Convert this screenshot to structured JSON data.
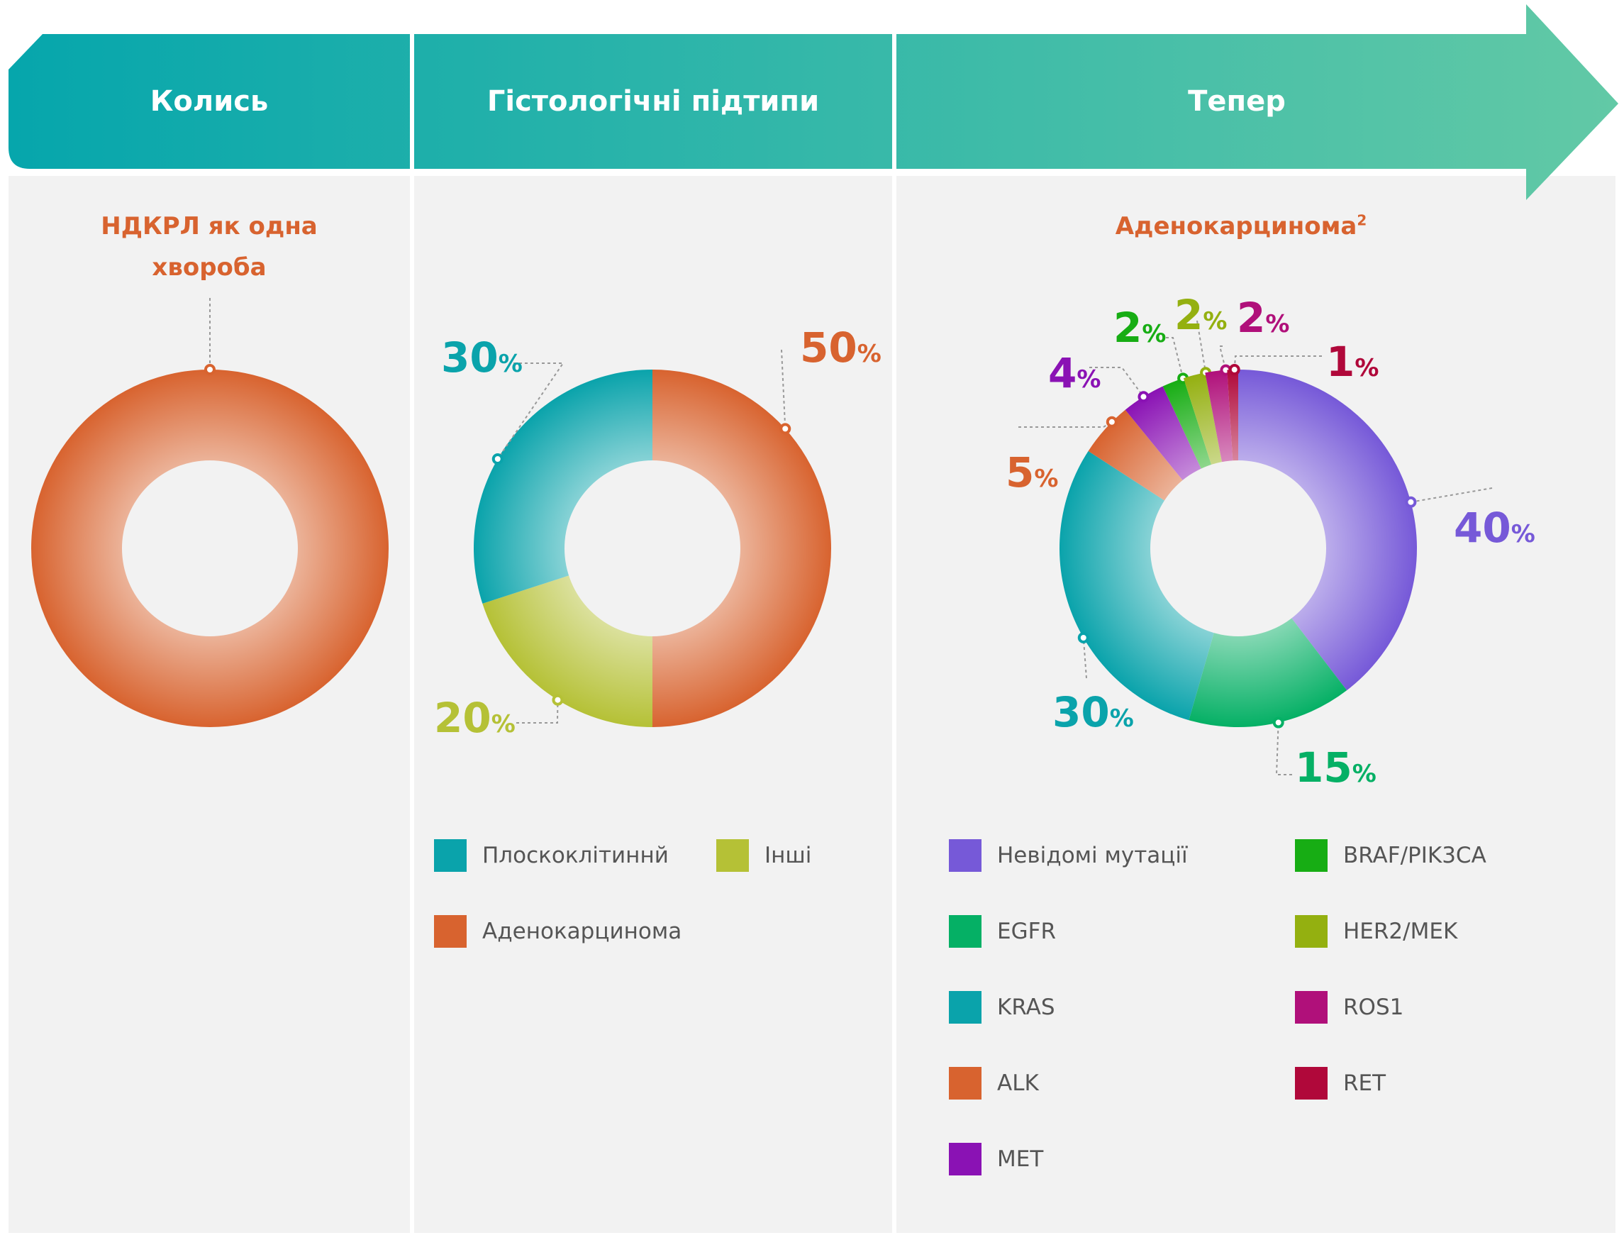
{
  "headers": {
    "past": "Колись",
    "histology": "Гістологічні підтипи",
    "now": "Тепер"
  },
  "colors": {
    "orange": "#d8632f",
    "teal": "#0aa3ab",
    "olive": "#b5c136",
    "purple": "#7659d8",
    "green": "#05b065",
    "violet": "#8a12b4",
    "brightgreen": "#17ad14",
    "lime": "#94b010",
    "magenta": "#b0107a",
    "crimson": "#b0083a"
  },
  "chart_data": [
    {
      "type": "pie",
      "title": "НДКРЛ як одна хвороба",
      "series": [
        {
          "values": [
            100
          ],
          "color": "#d8632f"
        }
      ]
    },
    {
      "type": "pie",
      "title": "",
      "categories": [
        "Аденокарцинома",
        "Інші",
        "Плоскоклітиннй"
      ],
      "values": [
        50,
        20,
        30
      ],
      "value_labels": [
        "50",
        "20",
        "30"
      ],
      "colors": [
        "#d8632f",
        "#b5c136",
        "#0aa3ab"
      ],
      "legend": [
        "Плоскоклітиннй",
        "Інші",
        "Аденокарцинома"
      ]
    },
    {
      "type": "pie",
      "title": "Аденокарцинома",
      "title_sup": "2",
      "categories": [
        "Невідомі мутації",
        "EGFR",
        "KRAS",
        "ALK",
        "MET",
        "BRAF/PIK3CA",
        "HER2/MEK",
        "ROS1",
        "RET"
      ],
      "values": [
        40,
        15,
        30,
        5,
        4,
        2,
        2,
        2,
        1
      ],
      "value_labels": [
        "40",
        "15",
        "30",
        "5",
        "4",
        "2",
        "2",
        "2",
        "1"
      ],
      "colors": [
        "#7659d8",
        "#05b065",
        "#0aa3ab",
        "#d8632f",
        "#8a12b4",
        "#17ad14",
        "#94b010",
        "#b0107a",
        "#b0083a"
      ],
      "legend": [
        "Невідомі мутації",
        "EGFR",
        "KRAS",
        "ALK",
        "MET",
        "BRAF/PIK3CA",
        "HER2/MEK",
        "ROS1",
        "RET"
      ]
    }
  ],
  "percent_sign": "%"
}
